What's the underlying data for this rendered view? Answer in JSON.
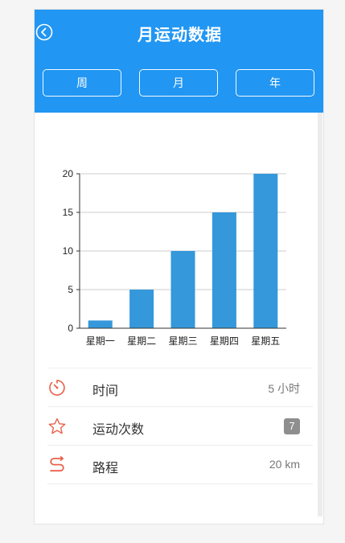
{
  "header": {
    "title": "月运动数据",
    "background": "#2196f3"
  },
  "tabs": [
    {
      "label": "周"
    },
    {
      "label": "月"
    },
    {
      "label": "年"
    }
  ],
  "chart_data": {
    "type": "bar",
    "categories": [
      "星期一",
      "星期二",
      "星期三",
      "星期四",
      "星期五"
    ],
    "values": [
      1,
      5,
      10,
      15,
      20
    ],
    "ylim": [
      0,
      20
    ],
    "yticks": [
      0,
      5,
      10,
      15,
      20
    ],
    "grid": true,
    "bar_color": "#3498db"
  },
  "stats": {
    "time": {
      "label": "时间",
      "value": "5 小时",
      "icon": "timer-icon"
    },
    "count": {
      "label": "运动次数",
      "value": "7",
      "icon": "star-icon"
    },
    "distance": {
      "label": "路程",
      "value": "20 km",
      "icon": "route-icon"
    },
    "icon_color": "#e8604c"
  }
}
